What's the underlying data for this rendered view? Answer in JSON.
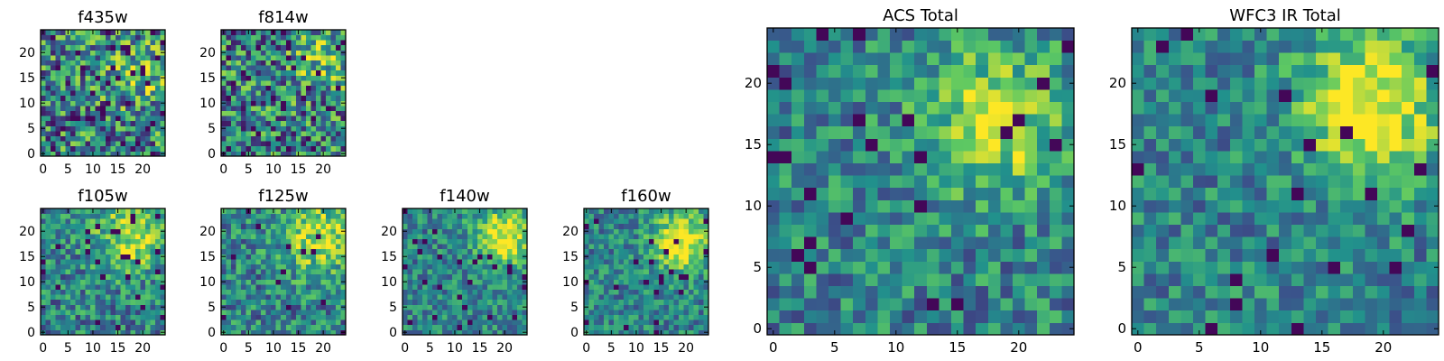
{
  "colormap": "viridis",
  "colors": {
    "viridis_stops": [
      "#440154",
      "#3b528b",
      "#21918c",
      "#5ec962",
      "#fde725"
    ],
    "frame": "#000000",
    "background": "#ffffff"
  },
  "chart_data": [
    {
      "type": "heatmap",
      "title": "f435w",
      "grid": false,
      "xticks": [
        0,
        5,
        10,
        15,
        20
      ],
      "yticks": [
        0,
        5,
        10,
        15,
        20
      ],
      "xlim": [
        -0.5,
        24.5
      ],
      "ylim": [
        -0.5,
        24.5
      ],
      "size": [
        25,
        25
      ],
      "seed": 11,
      "noise": 0.82,
      "blob": 0.25,
      "blob_center": [
        19,
        16
      ],
      "blob_sigma": 5,
      "dark_fraction": 0.05
    },
    {
      "type": "heatmap",
      "title": "f814w",
      "grid": false,
      "xticks": [
        0,
        5,
        10,
        15,
        20
      ],
      "yticks": [
        0,
        5,
        10,
        15,
        20
      ],
      "xlim": [
        -0.5,
        24.5
      ],
      "ylim": [
        -0.5,
        24.5
      ],
      "size": [
        25,
        25
      ],
      "seed": 23,
      "noise": 0.8,
      "blob": 0.3,
      "blob_center": [
        20,
        18
      ],
      "blob_sigma": 4,
      "dark_fraction": 0.05
    },
    {
      "type": "heatmap",
      "title": "f105w",
      "grid": false,
      "xticks": [
        0,
        5,
        10,
        15,
        20
      ],
      "yticks": [
        0,
        5,
        10,
        15,
        20
      ],
      "xlim": [
        -0.5,
        24.5
      ],
      "ylim": [
        -0.5,
        24.5
      ],
      "size": [
        25,
        25
      ],
      "seed": 37,
      "noise": 0.55,
      "blob": 0.45,
      "blob_center": [
        18,
        19
      ],
      "blob_sigma": 5,
      "dark_fraction": 0.03
    },
    {
      "type": "heatmap",
      "title": "f125w",
      "grid": false,
      "xticks": [
        0,
        5,
        10,
        15,
        20
      ],
      "yticks": [
        0,
        5,
        10,
        15,
        20
      ],
      "xlim": [
        -0.5,
        24.5
      ],
      "ylim": [
        -0.5,
        24.5
      ],
      "size": [
        25,
        25
      ],
      "seed": 41,
      "noise": 0.55,
      "blob": 0.45,
      "blob_center": [
        19,
        19
      ],
      "blob_sigma": 5,
      "dark_fraction": 0.03
    },
    {
      "type": "heatmap",
      "title": "f140w",
      "grid": false,
      "xticks": [
        0,
        5,
        10,
        15,
        20
      ],
      "yticks": [
        0,
        5,
        10,
        15,
        20
      ],
      "xlim": [
        -0.5,
        24.5
      ],
      "ylim": [
        -0.5,
        24.5
      ],
      "size": [
        25,
        25
      ],
      "seed": 53,
      "noise": 0.45,
      "blob": 0.55,
      "blob_center": [
        20,
        19
      ],
      "blob_sigma": 4,
      "dark_fraction": 0.03
    },
    {
      "type": "heatmap",
      "title": "f160w",
      "grid": false,
      "xticks": [
        0,
        5,
        10,
        15,
        20
      ],
      "yticks": [
        0,
        5,
        10,
        15,
        20
      ],
      "xlim": [
        -0.5,
        24.5
      ],
      "ylim": [
        -0.5,
        24.5
      ],
      "size": [
        25,
        25
      ],
      "seed": 67,
      "noise": 0.45,
      "blob": 0.6,
      "blob_center": [
        19,
        18
      ],
      "blob_sigma": 4,
      "dark_fraction": 0.03
    },
    {
      "type": "heatmap",
      "title": "ACS Total",
      "grid": false,
      "xticks": [
        0,
        5,
        10,
        15,
        20
      ],
      "yticks": [
        0,
        5,
        10,
        15,
        20
      ],
      "xlim": [
        -0.5,
        24.5
      ],
      "ylim": [
        -0.5,
        24.5
      ],
      "size": [
        25,
        25
      ],
      "seed": 79,
      "noise": 0.5,
      "blob": 0.45,
      "blob_center": [
        18,
        17
      ],
      "blob_sigma": 4,
      "dark_fraction": 0.03
    },
    {
      "type": "heatmap",
      "title": "WFC3 IR Total",
      "grid": false,
      "xticks": [
        0,
        5,
        10,
        15,
        20
      ],
      "yticks": [
        0,
        5,
        10,
        15,
        20
      ],
      "xlim": [
        -0.5,
        24.5
      ],
      "ylim": [
        -0.5,
        24.5
      ],
      "size": [
        25,
        25
      ],
      "seed": 97,
      "noise": 0.45,
      "blob": 0.6,
      "blob_center": [
        19,
        18
      ],
      "blob_sigma": 4,
      "dark_fraction": 0.03
    }
  ]
}
